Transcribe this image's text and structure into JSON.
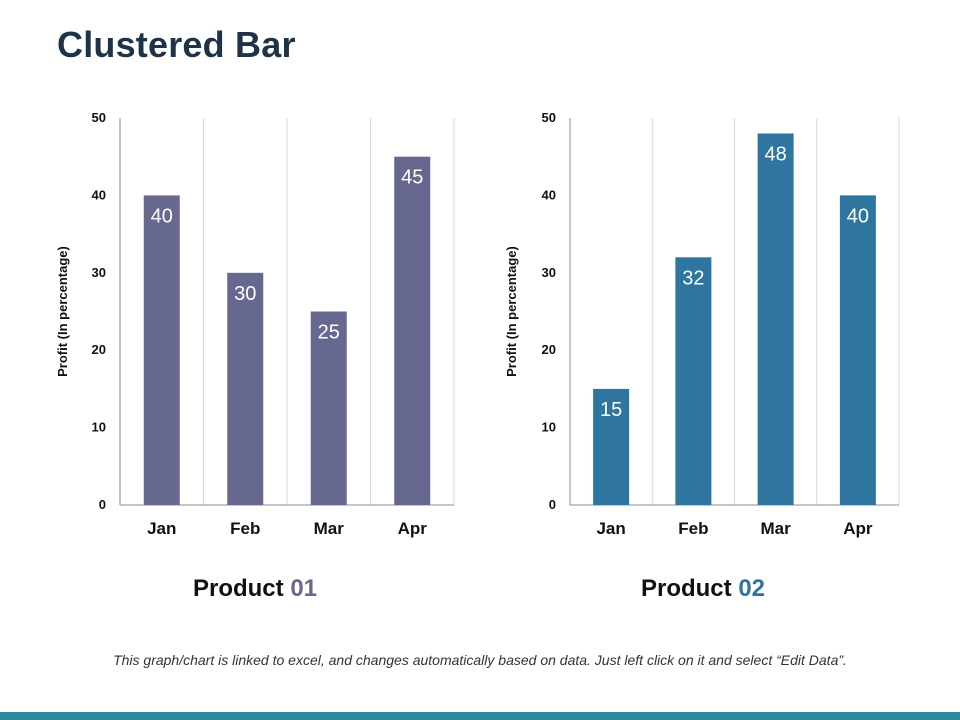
{
  "title": "Clustered Bar",
  "footnote": "This graph/chart is linked to excel, and changes automatically based on data. Just left click on it and select “Edit Data”.",
  "colors": {
    "product1": "#67688f",
    "product2": "#2e76a0",
    "bottom_bar": "#2e8a9c"
  },
  "products": [
    {
      "name": "Product",
      "number": "01"
    },
    {
      "name": "Product",
      "number": "02"
    }
  ],
  "chart_data": [
    {
      "type": "bar",
      "title": "Product 01",
      "categories": [
        "Jan",
        "Feb",
        "Mar",
        "Apr"
      ],
      "values": [
        40,
        30,
        25,
        45
      ],
      "ylabel": "Profit  (In percentage)",
      "xlabel": "",
      "ylim": [
        0,
        50
      ],
      "yticks": [
        0,
        10,
        20,
        30,
        40,
        50
      ],
      "grid": "vertical",
      "color": "#67688f"
    },
    {
      "type": "bar",
      "title": "Product 02",
      "categories": [
        "Jan",
        "Feb",
        "Mar",
        "Apr"
      ],
      "values": [
        15,
        32,
        48,
        40
      ],
      "ylabel": "Profit  (In percentage)",
      "xlabel": "",
      "ylim": [
        0,
        50
      ],
      "yticks": [
        0,
        10,
        20,
        30,
        40,
        50
      ],
      "grid": "vertical",
      "color": "#2e76a0"
    }
  ]
}
